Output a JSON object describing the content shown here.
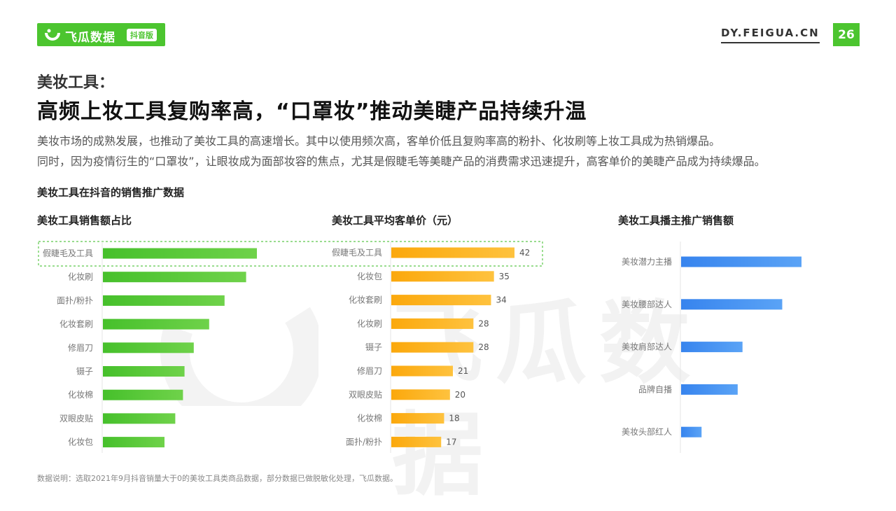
{
  "header": {
    "brand": "飞瓜数据",
    "brand_badge": "抖音版",
    "site": "DY.FEIGUA.CN",
    "page_number": "26"
  },
  "section_label": "美妆工具：",
  "headline": "高频上妆工具复购率高，“口罩妆”推动美睫产品持续升温",
  "description": [
    "美妆市场的成熟发展，也推动了美妆工具的高速增长。其中以使用频次高，客单价低且复购率高的粉扑、化妆刷等上妆工具成为热销爆品。",
    "同时，因为疫情衍生的“口罩妆”，让眼妆成为面部妆容的焦点，尤其是假睫毛等美睫产品的消费需求迅速提升，高客单价的美睫产品成为持续爆品。"
  ],
  "charts_title": "美妆工具在抖音的销售推广数据",
  "watermark": "飞瓜数据",
  "note": "数据说明：选取2021年9月抖音销量大于0的美妆工具类商品数据，部分数据已做脱敏化处理，飞瓜数据。",
  "colors": {
    "brand_green": "#4cc52f",
    "bar_green": "#4cc52f",
    "bar_orange": "#fdae17",
    "bar_blue": "#3d8ff0",
    "highlight_border": "#5cc84a"
  },
  "chart_data": [
    {
      "type": "bar",
      "orientation": "horizontal",
      "title": "美妆工具销售额占比",
      "categories": [
        "假睫毛及工具",
        "化妆刷",
        "面扑/粉扑",
        "化妆套刷",
        "修眉刀",
        "镊子",
        "化妆棉",
        "双眼皮贴",
        "化妆包"
      ],
      "values": [
        100,
        93,
        79,
        69,
        59,
        53,
        52,
        47,
        40
      ],
      "value_labels_shown": false,
      "highlight": "假睫毛及工具",
      "xlim": [
        0,
        100
      ]
    },
    {
      "type": "bar",
      "orientation": "horizontal",
      "title": "美妆工具平均客单价（元）",
      "categories": [
        "假睫毛及工具",
        "化妆包",
        "化妆套刷",
        "化妆刷",
        "镊子",
        "修眉刀",
        "双眼皮贴",
        "化妆棉",
        "面扑/粉扑"
      ],
      "values": [
        42,
        35,
        34,
        28,
        28,
        21,
        20,
        18,
        17
      ],
      "value_labels_shown": true,
      "highlight": "假睫毛及工具",
      "xlim": [
        0,
        42
      ]
    },
    {
      "type": "bar",
      "orientation": "horizontal",
      "title": "美妆工具播主推广销售额",
      "categories": [
        "美妆潜力主播",
        "美妆腰部达人",
        "美妆肩部达人",
        "品牌自播",
        "美妆头部红人"
      ],
      "values": [
        100,
        84,
        51,
        47,
        17
      ],
      "value_labels_shown": false,
      "xlim": [
        0,
        100
      ]
    }
  ]
}
